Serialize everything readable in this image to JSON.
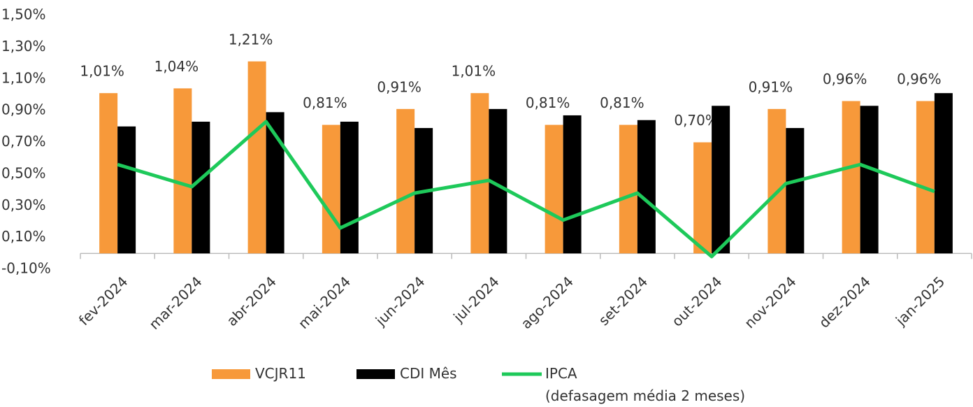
{
  "chart_data": {
    "type": "bar_line",
    "categories": [
      "fev-2024",
      "mar-2024",
      "abr-2024",
      "mai-2024",
      "jun-2024",
      "jul-2024",
      "ago-2024",
      "set-2024",
      "out-2024",
      "nov-2024",
      "dez-2024",
      "jan-2025"
    ],
    "series": [
      {
        "name": "VCJR11",
        "type": "bar",
        "color": "#f7993a",
        "values": [
          1.01,
          1.04,
          1.21,
          0.81,
          0.91,
          1.01,
          0.81,
          0.81,
          0.7,
          0.91,
          0.96,
          0.96
        ],
        "value_labels": [
          "1,01%",
          "1,04%",
          "1,21%",
          "0,81%",
          "0,91%",
          "1,01%",
          "0,81%",
          "0,81%",
          "0,70%",
          "0,91%",
          "0,96%",
          "0,96%"
        ]
      },
      {
        "name": "CDI Mês",
        "type": "bar",
        "color": "#000000",
        "values": [
          0.8,
          0.83,
          0.89,
          0.83,
          0.79,
          0.91,
          0.87,
          0.84,
          0.93,
          0.79,
          0.93,
          1.01
        ]
      },
      {
        "name": "IPCA\n(defasagem média 2 meses)",
        "type": "line",
        "color": "#1ec95a",
        "values": [
          0.56,
          0.42,
          0.83,
          0.16,
          0.38,
          0.46,
          0.21,
          0.38,
          -0.02,
          0.44,
          0.56,
          0.39
        ]
      }
    ],
    "ylim": [
      -0.1,
      1.5
    ],
    "yticks": [
      {
        "value": -0.1,
        "label": "-0,10%"
      },
      {
        "value": 0.1,
        "label": "0,10%"
      },
      {
        "value": 0.3,
        "label": "0,30%"
      },
      {
        "value": 0.5,
        "label": "0,50%"
      },
      {
        "value": 0.7,
        "label": "0,70%"
      },
      {
        "value": 0.9,
        "label": "0,90%"
      },
      {
        "value": 1.1,
        "label": "1,10%"
      },
      {
        "value": 1.3,
        "label": "1,30%"
      },
      {
        "value": 1.5,
        "label": "1,50%"
      }
    ],
    "grid": false
  }
}
